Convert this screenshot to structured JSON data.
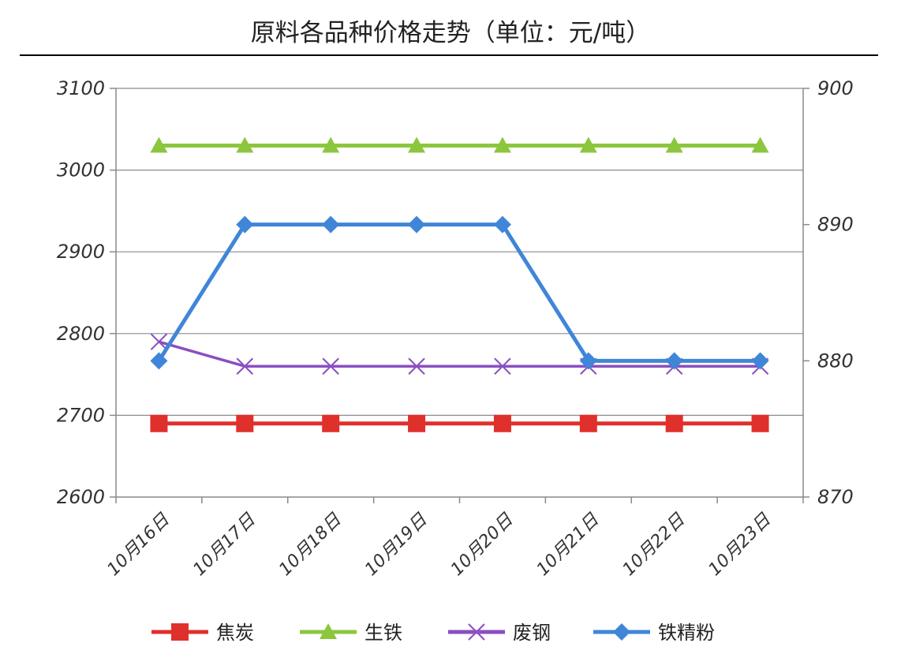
{
  "chart_data": {
    "type": "line",
    "title": "原料各品种价格走势（单位：元/吨）",
    "categories": [
      "10月16日",
      "10月17日",
      "10月18日",
      "10月19日",
      "10月20日",
      "10月21日",
      "10月22日",
      "10月23日"
    ],
    "y_left": {
      "min": 2600,
      "max": 3100,
      "ticks": [
        2600,
        2700,
        2800,
        2900,
        3000,
        3100
      ]
    },
    "y_right": {
      "min": 870,
      "max": 900,
      "ticks": [
        870,
        880,
        890,
        900
      ]
    },
    "grid": true,
    "legend_position": "bottom",
    "series": [
      {
        "name": "焦炭",
        "axis": "left",
        "marker": "square",
        "color": "#e0302c",
        "values": [
          2690,
          2690,
          2690,
          2690,
          2690,
          2690,
          2690,
          2690
        ]
      },
      {
        "name": "生铁",
        "axis": "left",
        "marker": "triangle",
        "color": "#8cc63e",
        "values": [
          3030,
          3030,
          3030,
          3030,
          3030,
          3030,
          3030,
          3030
        ]
      },
      {
        "name": "废钢",
        "axis": "left",
        "marker": "x",
        "color": "#8a4fc0",
        "values": [
          2790,
          2760,
          2760,
          2760,
          2760,
          2760,
          2760,
          2760
        ]
      },
      {
        "name": "铁精粉",
        "axis": "right",
        "marker": "diamond",
        "color": "#3f86d8",
        "values": [
          880,
          890,
          890,
          890,
          890,
          880,
          880,
          880
        ]
      }
    ]
  }
}
